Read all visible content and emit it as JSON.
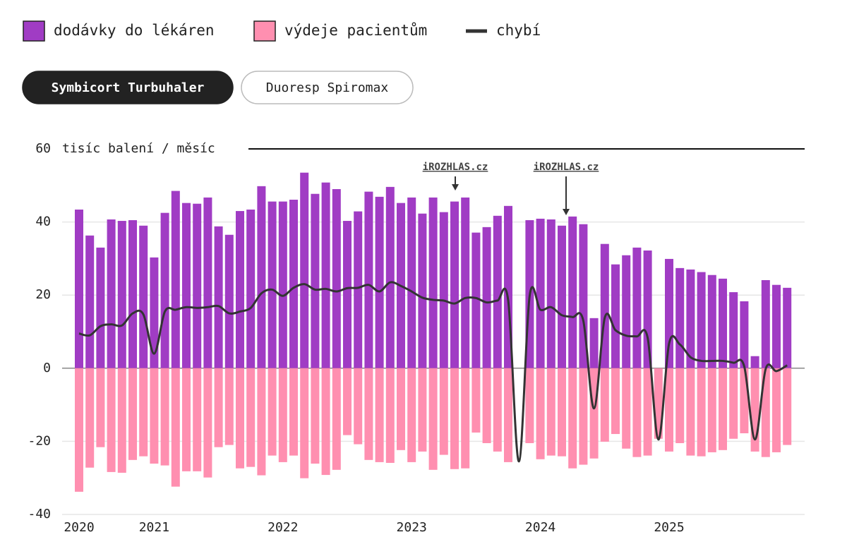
{
  "chart_data": {
    "type": "bar",
    "buttons": [
      "Symbicort Turbuhaler",
      "Duoresp Spiromax"
    ],
    "ylabel": "tisíc balení / měsíc",
    "annotations": [
      "iROZHLAS.cz",
      "iROZHLAS.cz"
    ],
    "categories": [
      "2020",
      null,
      null,
      null,
      null,
      null,
      null,
      "2021",
      null,
      null,
      null,
      null,
      null,
      null,
      null,
      null,
      null,
      null,
      null,
      "2022",
      null,
      null,
      null,
      null,
      null,
      null,
      null,
      null,
      null,
      null,
      null,
      "2023",
      null,
      null,
      null,
      null,
      null,
      null,
      null,
      null,
      null,
      null,
      null,
      "2024",
      null,
      null,
      null,
      null,
      null,
      null,
      null,
      null,
      null,
      null,
      null,
      "2025",
      null,
      null,
      null,
      null,
      null,
      null,
      null,
      null,
      null,
      null,
      null
    ],
    "series": [
      {
        "name": "dodávky do lékáren",
        "color": "#a03cc4",
        "values": [
          43.4,
          36.3,
          33.0,
          40.7,
          40.3,
          40.5,
          39.0,
          30.3,
          42.5,
          48.5,
          45.2,
          45.0,
          46.7,
          38.8,
          36.5,
          43.0,
          43.4,
          49.8,
          45.6,
          45.6,
          46.1,
          53.5,
          47.7,
          50.8,
          49.0,
          40.3,
          42.9,
          48.3,
          46.9,
          49.6,
          45.2,
          46.7,
          42.3,
          46.7,
          42.7,
          45.6,
          46.7,
          37.1,
          38.6,
          41.7,
          44.4,
          null,
          40.5,
          40.9,
          40.7,
          39.0,
          41.5,
          39.4,
          13.7,
          34.0,
          28.4,
          30.9,
          33.0,
          32.2,
          0,
          29.9,
          27.4,
          27.0,
          26.3,
          25.5,
          24.5,
          20.8,
          18.3,
          3.3,
          24.1,
          22.8,
          22.0
        ]
      },
      {
        "name": "výdeje pacientům",
        "color": "#ff8fb0",
        "values": [
          -33.8,
          -27.2,
          -21.6,
          -28.4,
          -28.6,
          -25.1,
          -24.1,
          -26.1,
          -26.6,
          -32.4,
          -28.2,
          -28.2,
          -29.9,
          -21.6,
          -21.0,
          -27.4,
          -27.0,
          -29.3,
          -23.9,
          -25.7,
          -23.9,
          -30.1,
          -26.1,
          -29.2,
          -27.8,
          -18.3,
          -20.8,
          -25.1,
          -25.7,
          -25.9,
          -22.4,
          -25.7,
          -22.8,
          -27.8,
          -23.7,
          -27.6,
          -27.4,
          -17.6,
          -20.5,
          -22.8,
          -25.7,
          null,
          -20.5,
          -24.9,
          -23.9,
          -24.1,
          -27.4,
          -26.4,
          -24.7,
          -20.1,
          -18.0,
          -22.0,
          -24.3,
          -23.9,
          -19.3,
          -22.8,
          -20.5,
          -23.9,
          -24.1,
          -23.0,
          -22.4,
          -19.3,
          -17.8,
          -22.8,
          -24.3,
          -23.0,
          -21.0
        ]
      },
      {
        "name": "chybí",
        "color": "#333333",
        "type": "line",
        "values": [
          9.5,
          9,
          11.5,
          12,
          11.7,
          15,
          14.7,
          4,
          15.5,
          16,
          16.7,
          16.5,
          16.7,
          17,
          15,
          15.5,
          16.5,
          20.5,
          21.5,
          19.8,
          22,
          23,
          21.5,
          21.7,
          21,
          21.9,
          22,
          22.8,
          21,
          23.5,
          22.5,
          21,
          19.3,
          18.7,
          18.5,
          17.7,
          19.2,
          19.2,
          18,
          18.5,
          18.5,
          -25.5,
          19.8,
          16,
          16.7,
          14.5,
          14,
          13,
          -11,
          13.8,
          10.4,
          8.9,
          8.7,
          8.3,
          -19.5,
          6.8,
          6.5,
          3,
          2,
          2,
          2,
          1.5,
          0.5,
          -19.5,
          -0.2,
          -0.8,
          0.8
        ]
      }
    ],
    "ylim": [
      -40,
      60
    ],
    "yticks": [
      60,
      40,
      20,
      0,
      -20,
      -40
    ],
    "grid": true
  }
}
